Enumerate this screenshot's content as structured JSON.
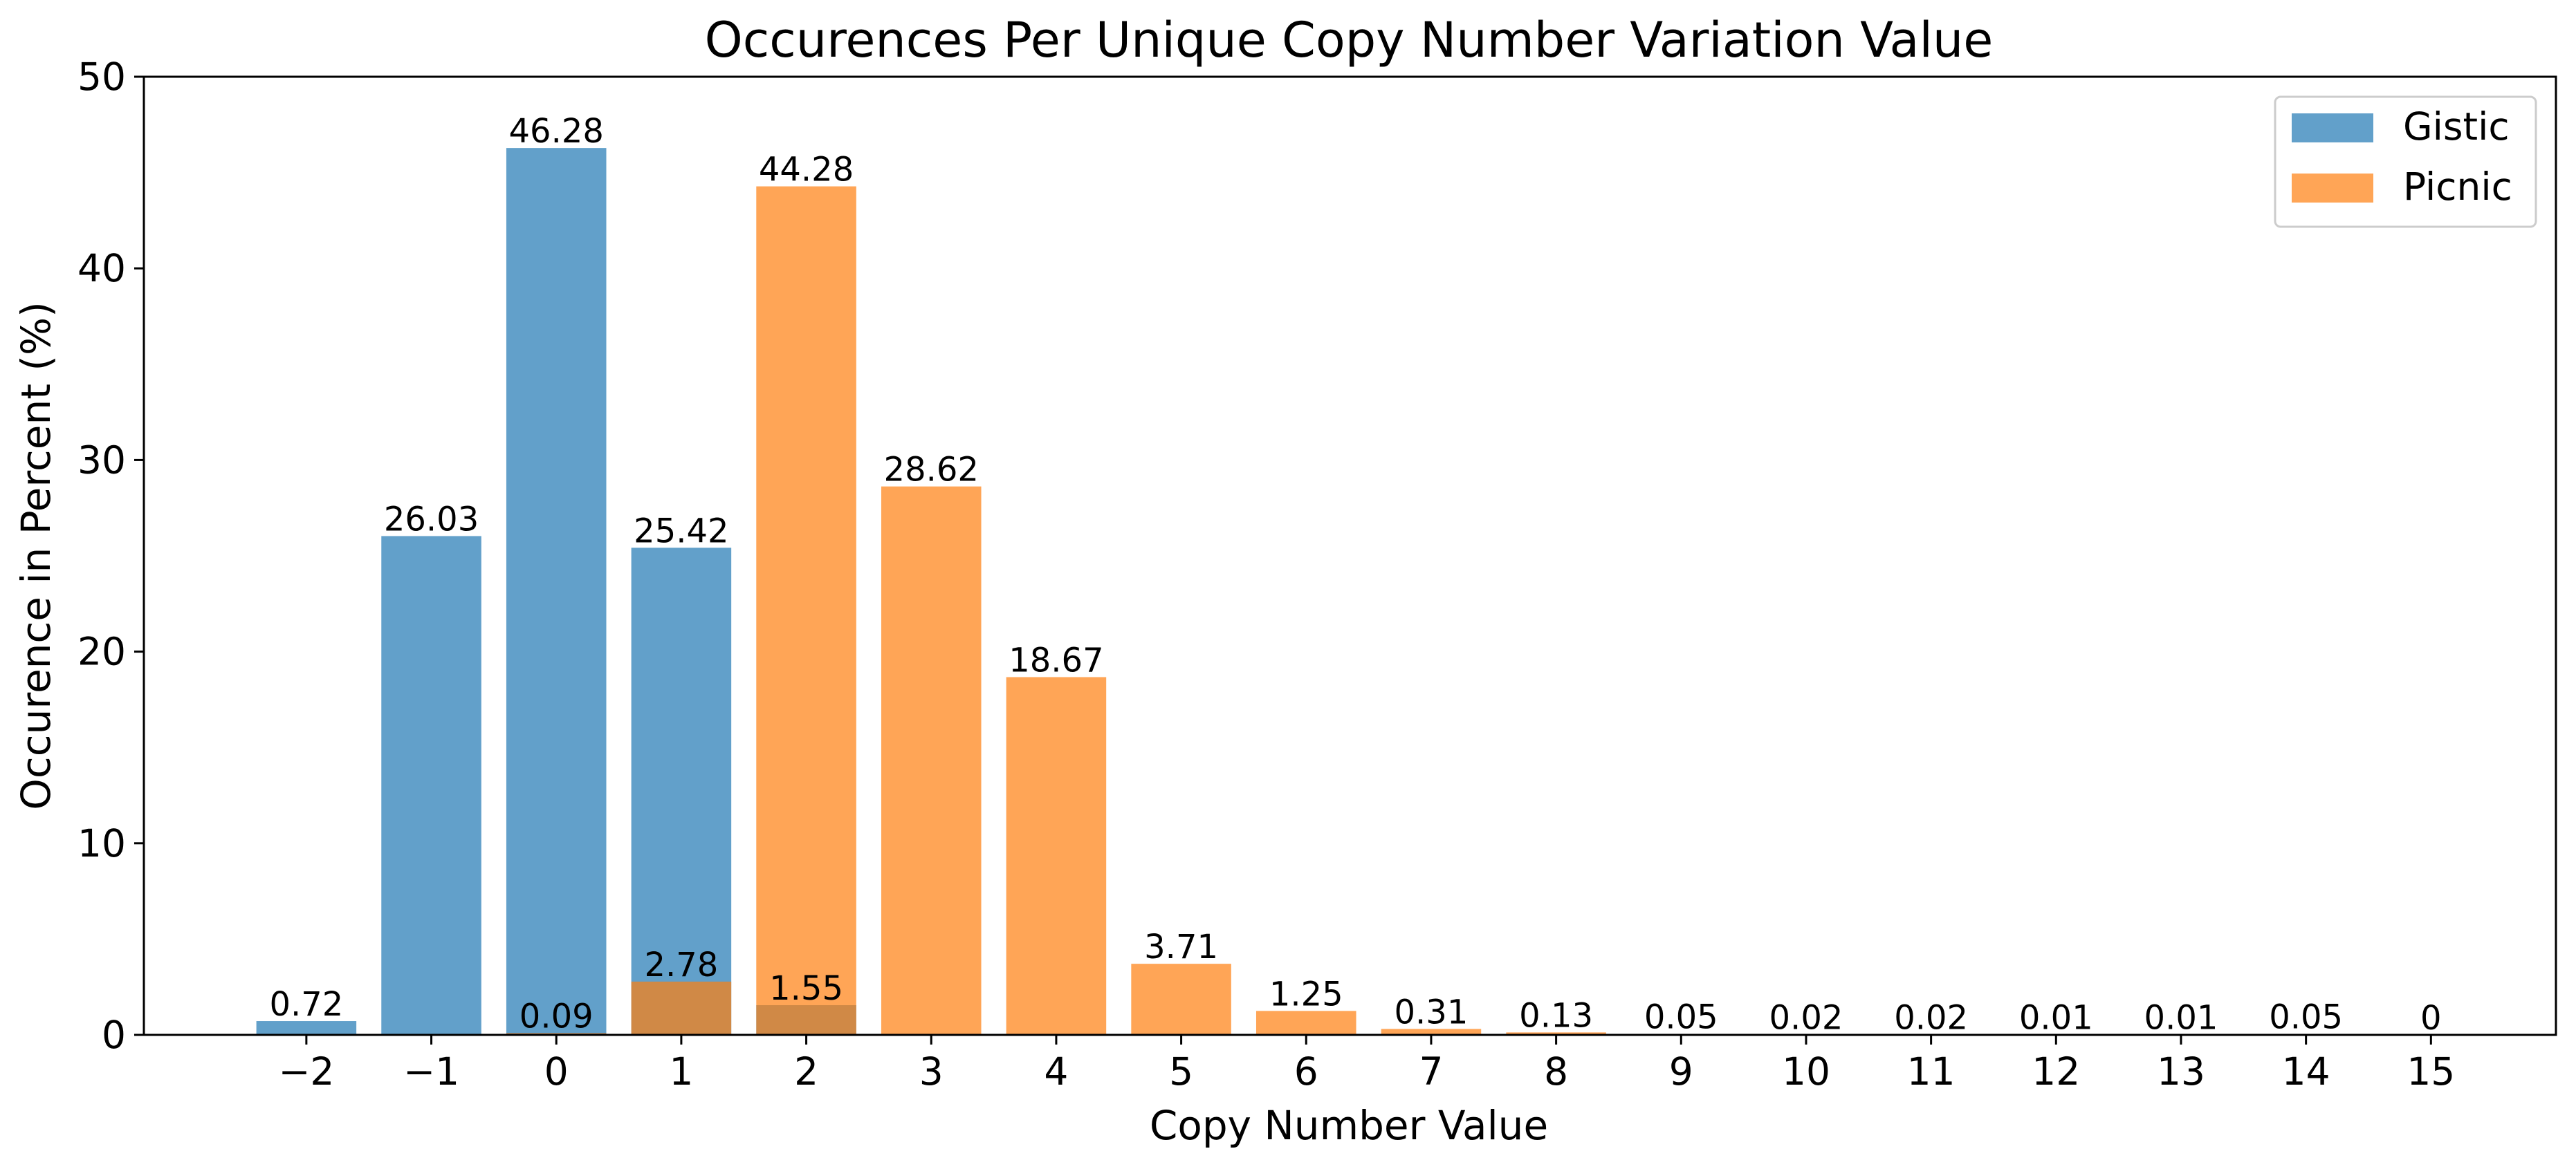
{
  "chart_data": {
    "type": "bar",
    "title": "Occurences Per Unique Copy Number Variation Value",
    "xlabel": "Copy Number Value",
    "ylabel": "Occurence in Percent (%)",
    "x": [
      -2,
      -1,
      0,
      1,
      2,
      3,
      4,
      5,
      6,
      7,
      8,
      9,
      10,
      11,
      12,
      13,
      14,
      15
    ],
    "x_tick_labels": [
      "−2",
      "−1",
      "0",
      "1",
      "2",
      "3",
      "4",
      "5",
      "6",
      "7",
      "8",
      "9",
      "10",
      "11",
      "12",
      "13",
      "14",
      "15"
    ],
    "xlim": [
      -3.3,
      16.0
    ],
    "ylim": [
      0,
      50
    ],
    "y_ticks": [
      0,
      10,
      20,
      30,
      40,
      50
    ],
    "grid": false,
    "legend_position": "top-right",
    "series": [
      {
        "name": "Gistic",
        "color": "#1f77b4",
        "opacity": 0.7,
        "points": [
          {
            "x": -2,
            "value": 0.72,
            "label": "0.72"
          },
          {
            "x": -1,
            "value": 26.03,
            "label": "26.03"
          },
          {
            "x": 0,
            "value": 46.28,
            "label": "46.28"
          },
          {
            "x": 1,
            "value": 25.42,
            "label": "25.42"
          },
          {
            "x": 2,
            "value": 1.55,
            "label": ""
          }
        ]
      },
      {
        "name": "Picnic",
        "color": "#ff7f0e",
        "opacity": 0.7,
        "points": [
          {
            "x": 0,
            "value": 0.09,
            "label": "0.09"
          },
          {
            "x": 1,
            "value": 2.78,
            "label": "2.78"
          },
          {
            "x": 2,
            "value": 44.28,
            "label": "44.28"
          },
          {
            "x": 3,
            "value": 28.62,
            "label": "28.62"
          },
          {
            "x": 4,
            "value": 18.67,
            "label": "18.67"
          },
          {
            "x": 5,
            "value": 3.71,
            "label": "3.71"
          },
          {
            "x": 6,
            "value": 1.25,
            "label": "1.25"
          },
          {
            "x": 7,
            "value": 0.31,
            "label": "0.31"
          },
          {
            "x": 8,
            "value": 0.13,
            "label": "0.13"
          },
          {
            "x": 9,
            "value": 0.05,
            "label": "0.05"
          },
          {
            "x": 10,
            "value": 0.02,
            "label": "0.02"
          },
          {
            "x": 11,
            "value": 0.02,
            "label": "0.02"
          },
          {
            "x": 12,
            "value": 0.01,
            "label": "0.01"
          },
          {
            "x": 13,
            "value": 0.01,
            "label": "0.01"
          },
          {
            "x": 14,
            "value": 0.05,
            "label": "0.05"
          },
          {
            "x": 15,
            "value": 0,
            "label": "0"
          }
        ]
      }
    ],
    "annotations": [
      {
        "x": 2,
        "value": 1.55,
        "label": "1.55"
      }
    ]
  }
}
